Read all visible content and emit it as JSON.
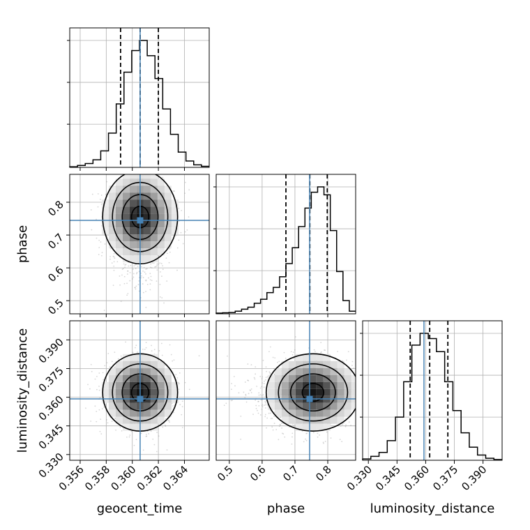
{
  "chart_data": {
    "type": "corner",
    "parameters": [
      "geocent_time",
      "phase",
      "luminosity_distance"
    ],
    "truths": {
      "geocent_time": 0.3606,
      "phase": 0.7447,
      "luminosity_distance": 0.3591
    },
    "quantiles": {
      "geocent_time": [
        0.3591,
        0.3606,
        0.362
      ],
      "phase": [
        0.6725,
        0.7453,
        0.7985
      ],
      "luminosity_distance": [
        0.3519,
        0.3621,
        0.3716
      ]
    },
    "ranges": {
      "geocent_time": [
        0.3552,
        0.3659
      ],
      "phase": [
        0.46,
        0.885
      ],
      "luminosity_distance": [
        0.327,
        0.4
      ]
    },
    "ticks": {
      "geocent_time": [
        "0.356",
        "0.358",
        "0.360",
        "0.362",
        "0.364"
      ],
      "phase": [
        "0.5",
        "0.6",
        "0.7",
        "0.8"
      ],
      "luminosity_distance": [
        "0.330",
        "0.345",
        "0.360",
        "0.375",
        "0.390"
      ]
    },
    "histograms": {
      "geocent_time": {
        "edges_start": 0.3552,
        "edges_end": 0.3659,
        "counts": [
          0.005,
          0.015,
          0.03,
          0.06,
          0.13,
          0.27,
          0.5,
          0.75,
          0.92,
          1.0,
          0.88,
          0.7,
          0.46,
          0.26,
          0.12,
          0.05,
          0.02,
          0.008
        ]
      },
      "phase": {
        "edges_start": 0.46,
        "edges_end": 0.885,
        "counts": [
          0.005,
          0.008,
          0.01,
          0.02,
          0.035,
          0.05,
          0.08,
          0.11,
          0.16,
          0.2,
          0.28,
          0.38,
          0.5,
          0.66,
          0.8,
          0.92,
          0.96,
          0.9,
          0.63,
          0.32,
          0.1,
          0.02
        ]
      },
      "luminosity_distance": {
        "edges_start": 0.327,
        "edges_end": 0.4,
        "counts": [
          0.01,
          0.03,
          0.06,
          0.15,
          0.33,
          0.6,
          0.88,
          0.97,
          0.93,
          0.83,
          0.6,
          0.38,
          0.21,
          0.1,
          0.04,
          0.015,
          0.005
        ]
      }
    },
    "grid": true
  },
  "colors": {
    "truth": "#4682b4",
    "histogram": "#000000",
    "contour": "#000000",
    "scatter": "#8a8a8a",
    "grid": "#b0b0b0"
  }
}
